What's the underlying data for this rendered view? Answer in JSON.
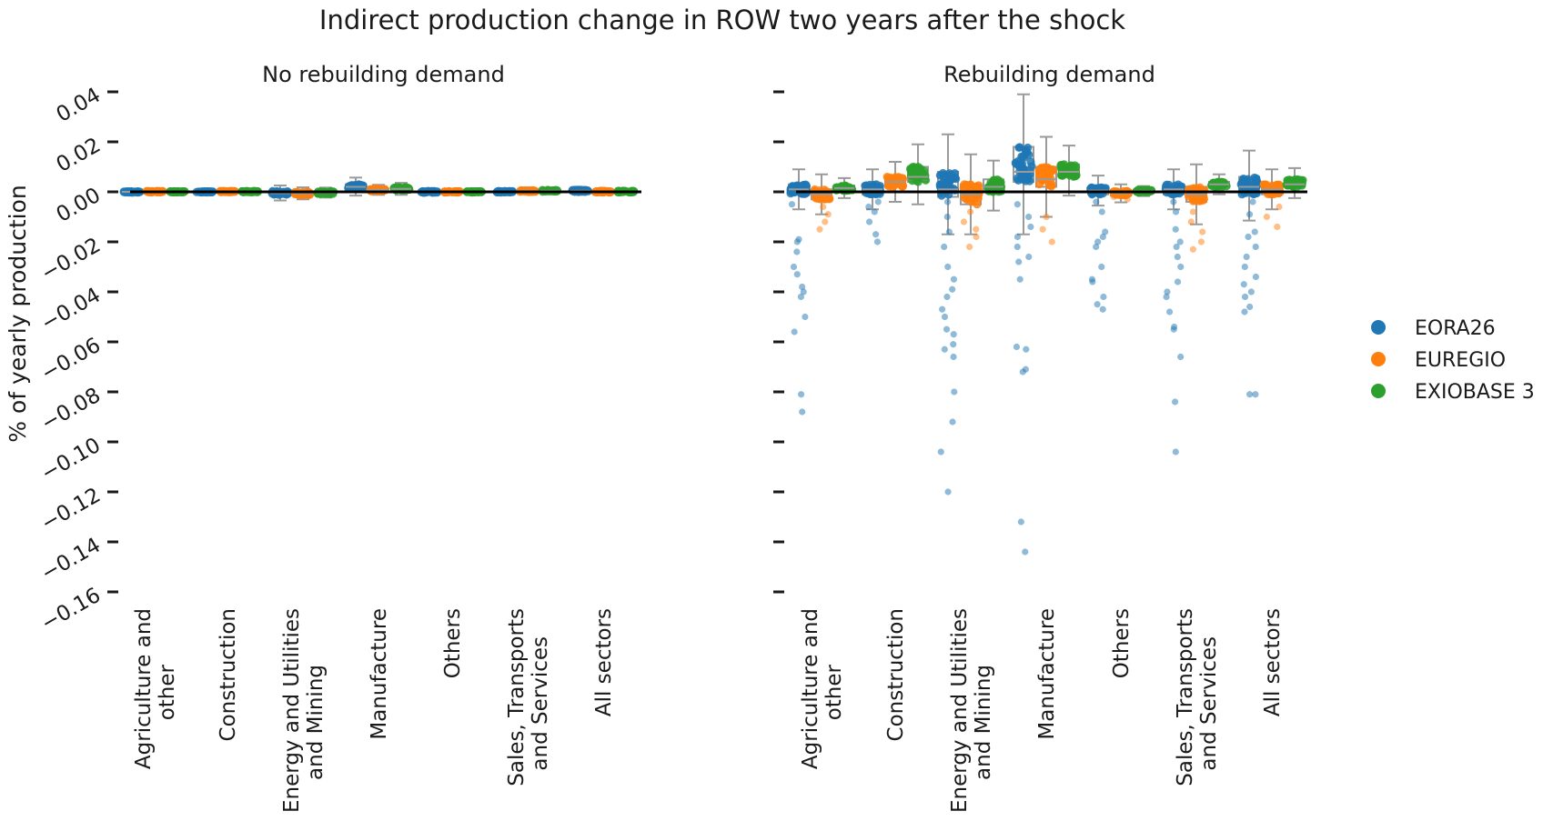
{
  "chart_data": {
    "type": "scatter",
    "title": "Indirect production change in ROW two years after the shock",
    "ylabel": "% of yearly production",
    "ylim": [
      -0.16,
      0.04
    ],
    "yticks": [
      "0.04",
      "0.02",
      "0.00",
      "−0.02",
      "−0.04",
      "−0.06",
      "−0.08",
      "−0.10",
      "−0.12",
      "−0.14",
      "−0.16"
    ],
    "ytick_values": [
      0.04,
      0.02,
      0.0,
      -0.02,
      -0.04,
      -0.06,
      -0.08,
      -0.1,
      -0.12,
      -0.14,
      -0.16
    ],
    "categories": [
      [
        "Agriculture and",
        "other"
      ],
      [
        "Construction"
      ],
      [
        "Energy and Utilities",
        "and Mining"
      ],
      [
        "Manufacture"
      ],
      [
        "Others"
      ],
      [
        "Sales, Transports",
        "and Services"
      ],
      [
        "All sectors"
      ]
    ],
    "legend": {
      "placement": "right",
      "entries": [
        {
          "name": "EORA26",
          "color": "#1f77b4"
        },
        {
          "name": "EUREGIO",
          "color": "#ff7f0e"
        },
        {
          "name": "EXIOBASE 3",
          "color": "#2ca02c"
        }
      ]
    },
    "panels": [
      {
        "title": "No rebuilding demand",
        "series": [
          {
            "name": "EORA26",
            "median": [
              0.0,
              0.0,
              -0.0005,
              0.002,
              0.0,
              0.0,
              0.0004
            ],
            "q1": [
              -0.0003,
              -0.0002,
              -0.0012,
              0.0012,
              -0.0003,
              -0.0002,
              0.0
            ],
            "q3": [
              0.0002,
              0.0002,
              0.0003,
              0.003,
              0.0003,
              0.0003,
              0.0008
            ],
            "outliers": [
              [],
              [],
              [],
              [],
              [],
              [],
              []
            ]
          },
          {
            "name": "EUREGIO",
            "median": [
              0.0001,
              0.0001,
              -0.0006,
              0.0008,
              0.0,
              0.0003,
              0.0001
            ],
            "q1": [
              -0.0002,
              -0.0001,
              -0.0012,
              0.0003,
              -0.0002,
              0.0,
              -0.0002
            ],
            "q3": [
              0.0003,
              0.0003,
              0.0,
              0.0013,
              0.0002,
              0.0006,
              0.0004
            ],
            "outliers": [
              [],
              [],
              [],
              [],
              [],
              [],
              []
            ]
          },
          {
            "name": "EXIOBASE 3",
            "median": [
              0.0,
              0.0001,
              -0.0003,
              0.0012,
              0.0,
              0.0004,
              0.0001
            ],
            "q1": [
              -0.0002,
              -0.0001,
              -0.0008,
              0.0006,
              -0.0002,
              0.0001,
              -0.0002
            ],
            "q3": [
              0.0002,
              0.0003,
              0.0002,
              0.0018,
              0.0002,
              0.0007,
              0.0004
            ],
            "outliers": [
              [],
              [],
              [],
              [],
              [],
              [],
              []
            ]
          }
        ]
      },
      {
        "title": "Rebuilding demand",
        "series": [
          {
            "name": "EORA26",
            "median": [
              0.001,
              0.001,
              0.001,
              0.008,
              0.0005,
              0.001,
              0.002
            ],
            "q1": [
              -0.001,
              -0.001,
              -0.002,
              0.004,
              -0.001,
              -0.001,
              -0.001
            ],
            "q3": [
              0.003,
              0.003,
              0.008,
              0.018,
              0.002,
              0.003,
              0.006
            ],
            "outliers": [
              [
                -0.005,
                -0.019,
                -0.02,
                -0.024,
                -0.03,
                -0.033,
                -0.038,
                -0.04,
                -0.042,
                -0.05,
                -0.056,
                -0.081,
                -0.088
              ],
              [
                -0.004,
                -0.006,
                -0.008,
                -0.012,
                -0.017,
                -0.02
              ],
              [
                -0.004,
                -0.01,
                -0.016,
                -0.022,
                -0.03,
                -0.035,
                -0.039,
                -0.042,
                -0.047,
                -0.05,
                -0.055,
                -0.057,
                -0.061,
                -0.063,
                -0.066,
                -0.08,
                -0.092,
                -0.104,
                -0.12
              ],
              [
                -0.005,
                -0.01,
                -0.014,
                -0.018,
                -0.022,
                -0.026,
                -0.028,
                -0.035,
                -0.062,
                -0.063,
                -0.071,
                -0.072,
                -0.132,
                -0.144
              ],
              [
                -0.004,
                -0.008,
                -0.016,
                -0.018,
                -0.02,
                -0.022,
                -0.03,
                -0.035,
                -0.036,
                -0.042,
                -0.045,
                -0.047
              ],
              [
                -0.004,
                -0.008,
                -0.015,
                -0.02,
                -0.022,
                -0.026,
                -0.03,
                -0.036,
                -0.04,
                -0.042,
                -0.048,
                -0.054,
                -0.055,
                -0.066,
                -0.084,
                -0.104
              ],
              [
                -0.004,
                -0.009,
                -0.016,
                -0.018,
                -0.022,
                -0.026,
                -0.03,
                -0.034,
                -0.037,
                -0.04,
                -0.042,
                -0.046,
                -0.048,
                -0.081,
                -0.081
              ]
            ]
          },
          {
            "name": "EUREGIO",
            "median": [
              -0.001,
              0.004,
              -0.001,
              0.005,
              -0.0005,
              -0.001,
              0.001
            ],
            "q1": [
              -0.003,
              0.002,
              -0.005,
              0.002,
              -0.0015,
              -0.004,
              -0.001
            ],
            "q3": [
              0.001,
              0.006,
              0.003,
              0.01,
              0.0003,
              0.002,
              0.003
            ],
            "outliers": [
              [
                -0.006,
                -0.009,
                -0.012,
                -0.015
              ],
              [],
              [
                -0.008,
                -0.012,
                -0.015,
                -0.018,
                -0.022
              ],
              [
                -0.01,
                -0.015,
                -0.02
              ],
              [
                -0.002,
                -0.003
              ],
              [
                -0.008,
                -0.012,
                -0.016,
                -0.02,
                -0.023
              ],
              [
                -0.006,
                -0.01,
                -0.014
              ]
            ]
          },
          {
            "name": "EXIOBASE 3",
            "median": [
              0.0015,
              0.006,
              0.002,
              0.008,
              0.0003,
              0.003,
              0.003
            ],
            "q1": [
              0.0005,
              0.004,
              0.0,
              0.006,
              -0.0002,
              0.002,
              0.002
            ],
            "q3": [
              0.0025,
              0.01,
              0.005,
              0.011,
              0.0008,
              0.004,
              0.005
            ],
            "outliers": [
              [],
              [],
              [],
              [],
              [],
              [],
              []
            ]
          }
        ]
      }
    ]
  }
}
